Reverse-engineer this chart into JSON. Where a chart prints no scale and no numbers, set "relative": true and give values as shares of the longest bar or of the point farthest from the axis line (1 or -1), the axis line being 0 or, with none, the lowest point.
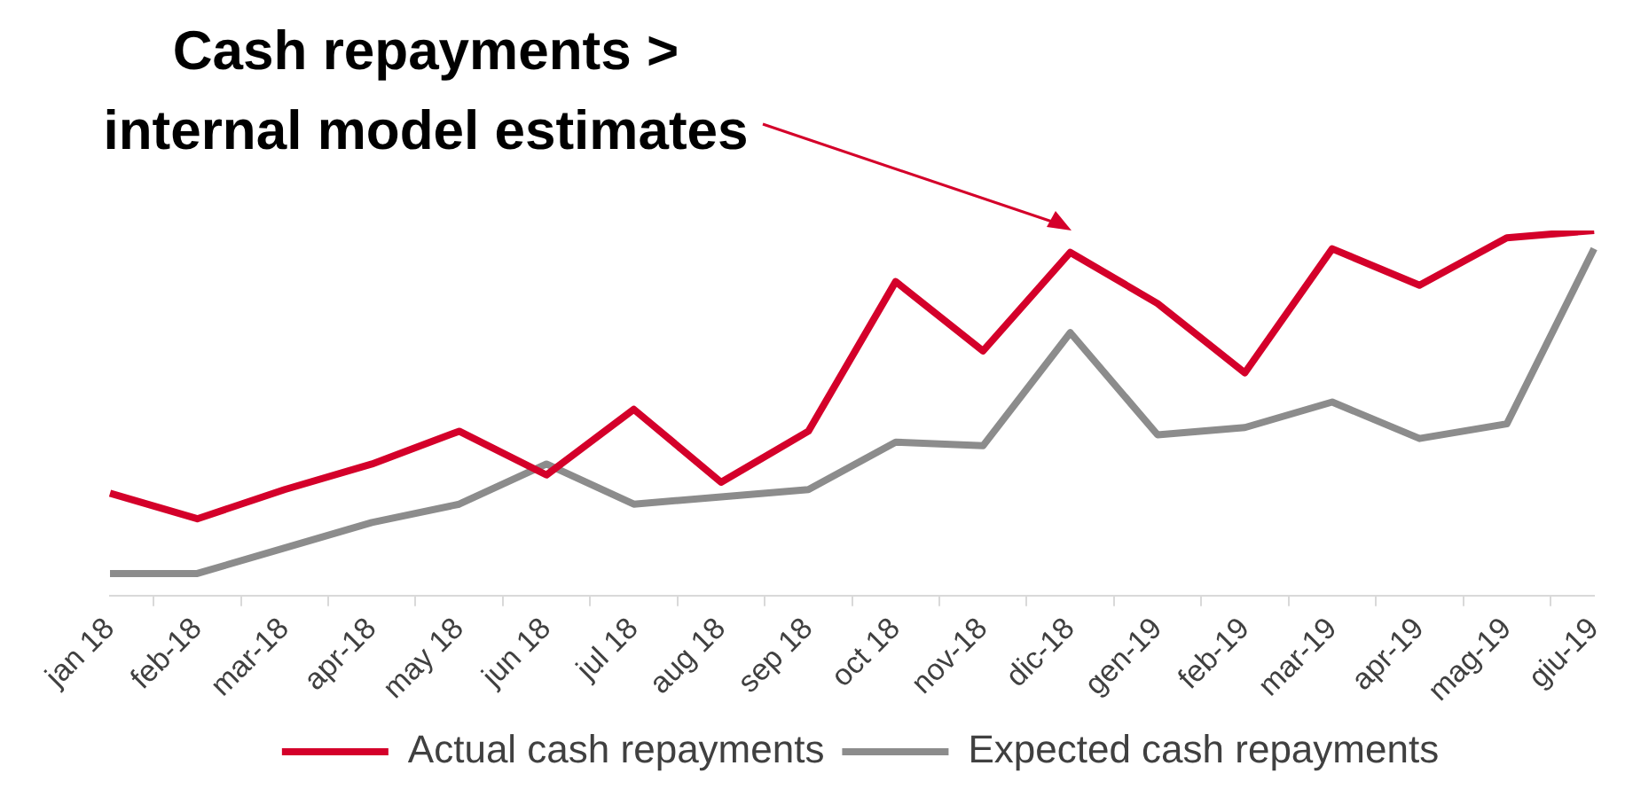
{
  "chart_data": {
    "type": "line",
    "title": "Cash repayments > internal model estimates",
    "relative": true,
    "categories": [
      "jan 18",
      "feb-18",
      "mar-18",
      "apr-18",
      "may 18",
      "jun 18",
      "jul 18",
      "aug 18",
      "sep 18",
      "oct 18",
      "nov-18",
      "dic-18",
      "gen-19",
      "feb-19",
      "mar-19",
      "apr-19",
      "mag-19",
      "giu-19"
    ],
    "series": [
      {
        "name": "Actual cash repayments",
        "color": "#d4002a",
        "values": [
          0.28,
          0.21,
          0.29,
          0.36,
          0.45,
          0.33,
          0.51,
          0.31,
          0.45,
          0.86,
          0.67,
          0.94,
          0.8,
          0.61,
          0.95,
          0.85,
          0.98,
          1
        ]
      },
      {
        "name": "Expected cash repayments",
        "color": "#8c8c8c",
        "values": [
          0.06,
          0.06,
          0.13,
          0.2,
          0.25,
          0.36,
          0.25,
          0.27,
          0.29,
          0.42,
          0.41,
          0.72,
          0.44,
          0.46,
          0.53,
          0.43,
          0.47,
          0.95
        ]
      }
    ],
    "legend": "bottom",
    "marker": "none",
    "line_style": "solid",
    "grid": false
  }
}
